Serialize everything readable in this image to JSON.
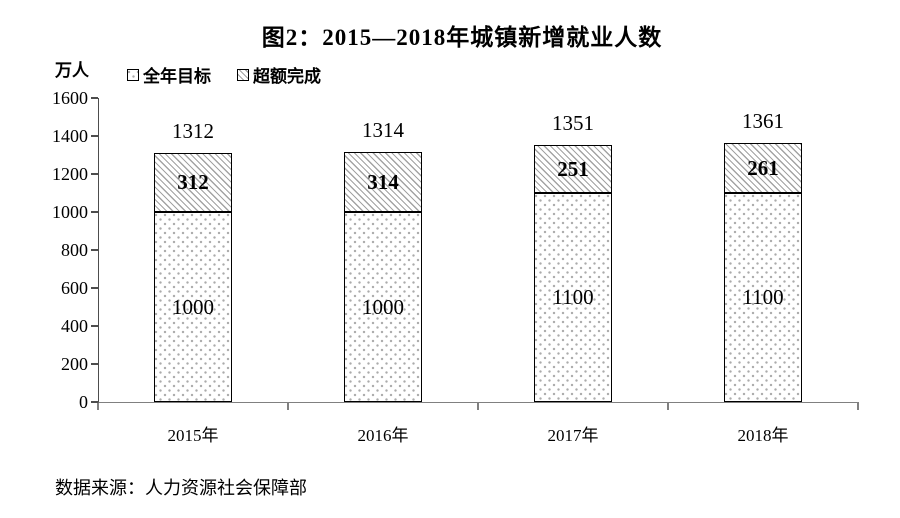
{
  "title": "图2：2015—2018年城镇新增就业人数",
  "unit_label": "万人",
  "legend": {
    "items": [
      {
        "label": "全年目标",
        "pattern": "dots"
      },
      {
        "label": "超额完成",
        "pattern": "hatch"
      }
    ]
  },
  "source_note": "数据来源：人力资源社会保障部",
  "colors": {
    "bar_border": "#000000",
    "pattern_gray": "#a3a3a3",
    "axis_gray": "#808080",
    "text": "#000000",
    "background": "#ffffff"
  },
  "chart_data": {
    "type": "bar",
    "stacked": true,
    "title": "图2：2015—2018年城镇新增就业人数",
    "categories": [
      "2015年",
      "2016年",
      "2017年",
      "2018年"
    ],
    "series": [
      {
        "name": "全年目标",
        "pattern": "dots",
        "values": [
          1000,
          1000,
          1100,
          1100
        ],
        "label_bold": false
      },
      {
        "name": "超额完成",
        "pattern": "hatch",
        "values": [
          312,
          314,
          251,
          261
        ],
        "label_bold": true
      }
    ],
    "totals": [
      1312,
      1314,
      1351,
      1361
    ],
    "ylabel": "万人",
    "xlabel": "",
    "ylim": [
      0,
      1600
    ],
    "yticks": [
      0,
      200,
      400,
      600,
      800,
      1000,
      1200,
      1400,
      1600
    ],
    "grid": false,
    "legend_position": "top-left"
  }
}
